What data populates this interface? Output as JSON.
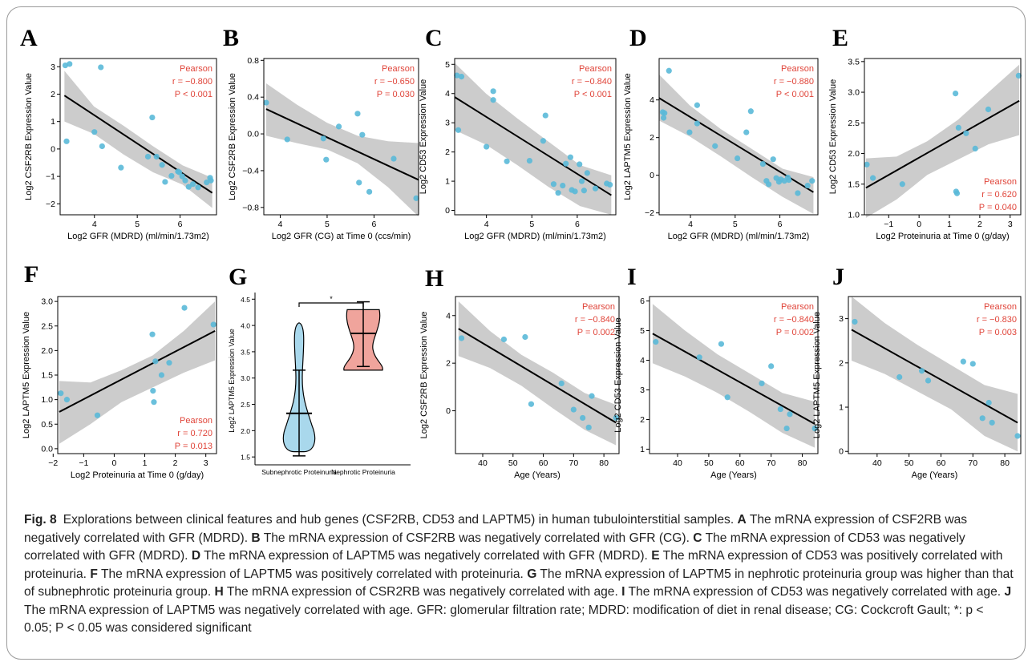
{
  "chart_data": [
    {
      "panel": "A",
      "type": "scatter",
      "xlabel": "Log2 GFR (MDRD) (ml/min/1.73m2)",
      "ylabel": "Log2 CSF2RB Expression Value",
      "xlim": [
        3.2,
        6.85
      ],
      "ylim": [
        -2.4,
        3.3
      ],
      "xticks": [
        4,
        5,
        6
      ],
      "yticks": [
        -2,
        -1,
        0,
        1,
        2,
        3
      ],
      "annotation": {
        "title": "Pearson",
        "r": "r = −0.800",
        "p": "P < 0.001",
        "position": "top-right"
      },
      "fit": {
        "x": [
          3.3,
          6.75
        ],
        "y": [
          1.95,
          -1.6
        ]
      },
      "band": {
        "upper": [
          2.85,
          1.55,
          0.85,
          0.1,
          -0.6,
          -1.05
        ],
        "lower": [
          1.0,
          0.55,
          -0.2,
          -0.85,
          -1.3,
          -2.15
        ]
      },
      "points": {
        "x": [
          3.32,
          3.42,
          3.35,
          4.15,
          4.0,
          4.18,
          4.62,
          5.25,
          5.35,
          5.45,
          5.58,
          5.65,
          5.8,
          5.95,
          5.98,
          6.05,
          6.12,
          6.2,
          6.3,
          6.42,
          6.62,
          6.7,
          6.72
        ],
        "y": [
          3.05,
          3.1,
          0.28,
          2.98,
          0.62,
          0.1,
          -0.68,
          -0.28,
          1.15,
          -0.28,
          -0.58,
          -1.2,
          -0.98,
          -0.82,
          -0.85,
          -1.0,
          -1.15,
          -1.38,
          -1.28,
          -1.4,
          -1.22,
          -1.05,
          -1.15
        ]
      }
    },
    {
      "panel": "B",
      "type": "scatter",
      "xlabel": "Log2 GFR (CG) at Time 0 (ccs/min)",
      "ylabel": "Log2 CSF2RB Expression Value",
      "xlim": [
        3.65,
        6.95
      ],
      "ylim": [
        -0.88,
        0.82
      ],
      "xticks": [
        4,
        5,
        6
      ],
      "yticks": [
        -0.8,
        -0.4,
        0.0,
        0.4,
        0.8
      ],
      "annotation": {
        "title": "Pearson",
        "r": "r = −0.650",
        "p": "P = 0.030",
        "position": "top-right"
      },
      "fit": {
        "x": [
          3.7,
          6.95
        ],
        "y": [
          0.27,
          -0.5
        ]
      },
      "band": {
        "upper": [
          0.55,
          0.32,
          0.12,
          -0.02,
          -0.08,
          -0.1
        ],
        "lower": [
          -0.02,
          -0.1,
          -0.17,
          -0.32,
          -0.58,
          -0.9
        ]
      },
      "points": {
        "x": [
          3.7,
          4.15,
          4.92,
          4.98,
          5.25,
          5.65,
          5.68,
          5.75,
          5.9,
          6.42,
          6.9
        ],
        "y": [
          0.34,
          -0.06,
          -0.05,
          -0.28,
          0.08,
          0.22,
          -0.53,
          -0.01,
          -0.63,
          -0.27,
          -0.7
        ]
      }
    },
    {
      "panel": "C",
      "type": "scatter",
      "xlabel": "Log2 GFR (MDRD) (ml/min/1.73m2)",
      "ylabel": "Log2 CD53 Expression Value",
      "xlim": [
        3.3,
        6.85
      ],
      "ylim": [
        -0.15,
        5.2
      ],
      "xticks": [
        4,
        5,
        6
      ],
      "yticks": [
        0,
        1,
        2,
        3,
        4,
        5
      ],
      "annotation": {
        "title": "Pearson",
        "r": "r = −0.840",
        "p": "P < 0.001",
        "position": "top-right"
      },
      "fit": {
        "x": [
          3.3,
          6.75
        ],
        "y": [
          3.88,
          0.52
        ]
      },
      "band": {
        "upper": [
          5.05,
          4.0,
          3.15,
          2.35,
          1.55,
          1.2
        ],
        "lower": [
          2.75,
          2.25,
          1.55,
          0.8,
          0.15,
          -0.15
        ]
      },
      "points": {
        "x": [
          3.35,
          3.45,
          3.38,
          4.15,
          4.15,
          4.0,
          4.45,
          4.95,
          5.3,
          5.25,
          5.48,
          5.58,
          5.68,
          5.75,
          5.85,
          5.88,
          5.95,
          6.05,
          6.1,
          6.15,
          6.22,
          6.4,
          6.65,
          6.72
        ],
        "y": [
          4.62,
          4.58,
          2.75,
          4.08,
          3.78,
          2.18,
          1.68,
          1.7,
          3.25,
          2.38,
          0.9,
          0.6,
          0.85,
          1.6,
          1.82,
          0.7,
          0.65,
          1.58,
          1.0,
          0.68,
          1.28,
          0.75,
          0.92,
          0.88
        ]
      }
    },
    {
      "panel": "D",
      "type": "scatter",
      "xlabel": "Log2 GFR (MDRD) (ml/min/1.73m2)",
      "ylabel": "Log2 LAPTM5 Expression Value",
      "xlim": [
        3.3,
        6.85
      ],
      "ylim": [
        -2.1,
        6.2
      ],
      "xticks": [
        4,
        5,
        6
      ],
      "yticks": [
        -2,
        0,
        2,
        4
      ],
      "annotation": {
        "title": "Pearson",
        "r": "r = −0.880",
        "p": "P < 0.001",
        "position": "top-right"
      },
      "fit": {
        "x": [
          3.3,
          6.75
        ],
        "y": [
          4.1,
          -0.9
        ]
      },
      "band": {
        "upper": [
          5.35,
          3.7,
          2.45,
          1.4,
          0.35,
          -0.1
        ],
        "lower": [
          2.9,
          2.05,
          1.0,
          -0.1,
          -1.15,
          -2.05
        ]
      },
      "points": {
        "x": [
          3.38,
          3.4,
          3.42,
          3.52,
          3.98,
          4.15,
          4.15,
          4.55,
          5.05,
          5.25,
          5.35,
          5.62,
          5.7,
          5.75,
          5.85,
          5.92,
          5.98,
          6.02,
          6.1,
          6.18,
          6.2,
          6.4,
          6.62,
          6.72
        ],
        "y": [
          3.35,
          3.05,
          3.3,
          5.55,
          2.28,
          2.75,
          3.72,
          1.55,
          0.9,
          2.28,
          3.4,
          0.6,
          -0.3,
          -0.48,
          0.85,
          -0.15,
          -0.35,
          -0.22,
          -0.3,
          -0.12,
          -0.25,
          -0.95,
          -0.55,
          -0.3
        ]
      }
    },
    {
      "panel": "E",
      "type": "scatter",
      "xlabel": "Log2 Proteinuria at Time 0 (g/day)",
      "ylabel": "Log2 CD53 Expression Value",
      "xlim": [
        -1.8,
        3.35
      ],
      "ylim": [
        1.0,
        3.55
      ],
      "xticks": [
        -1,
        0,
        1,
        2,
        3
      ],
      "yticks": [
        1.0,
        1.5,
        2.0,
        2.5,
        3.0,
        3.5
      ],
      "annotation": {
        "title": "Pearson",
        "r": "r = 0.620",
        "p": "P = 0.040",
        "position": "bottom-right"
      },
      "fit": {
        "x": [
          -1.75,
          3.3
        ],
        "y": [
          1.44,
          2.86
        ]
      },
      "band": {
        "upper": [
          1.92,
          1.95,
          2.2,
          2.55,
          3.0,
          3.45
        ],
        "lower": [
          0.95,
          1.25,
          1.65,
          1.9,
          2.15,
          2.3
        ]
      },
      "points": {
        "x": [
          -1.72,
          -1.52,
          -0.55,
          1.2,
          1.22,
          1.25,
          1.3,
          1.55,
          1.85,
          2.28,
          3.28
        ],
        "y": [
          1.82,
          1.6,
          1.5,
          2.98,
          1.38,
          1.35,
          2.42,
          2.33,
          2.08,
          2.72,
          3.27
        ]
      }
    },
    {
      "panel": "F",
      "type": "scatter",
      "xlabel": "Log2 Proteinuria at Time 0 (g/day)",
      "ylabel": "Log2 LAPTM5 Expression Value",
      "xlim": [
        -1.85,
        3.35
      ],
      "ylim": [
        -0.1,
        3.1
      ],
      "xticks": [
        -2,
        -1,
        0,
        1,
        2,
        3
      ],
      "yticks": [
        0.0,
        0.5,
        1.0,
        1.5,
        2.0,
        2.5,
        3.0
      ],
      "annotation": {
        "title": "Pearson",
        "r": "r = 0.720",
        "p": "P = 0.013",
        "position": "bottom-right"
      },
      "fit": {
        "x": [
          -1.8,
          3.3
        ],
        "y": [
          0.75,
          2.4
        ]
      },
      "band": {
        "upper": [
          1.38,
          1.35,
          1.6,
          1.9,
          2.4,
          3.0
        ],
        "lower": [
          0.1,
          0.5,
          0.95,
          1.25,
          1.55,
          1.8
        ]
      },
      "points": {
        "x": [
          -1.75,
          -1.55,
          -0.55,
          1.25,
          1.27,
          1.3,
          1.35,
          1.55,
          1.8,
          2.3,
          3.25
        ],
        "y": [
          1.13,
          1.0,
          0.68,
          2.33,
          1.18,
          0.95,
          1.78,
          1.5,
          1.75,
          2.87,
          2.53
        ]
      }
    },
    {
      "panel": "G",
      "type": "violin",
      "ylabel": "Log2 LAPTM5 Expression Value",
      "categories": [
        "Subnephrotic Proteinuria",
        "Nephrotic Proteinuria"
      ],
      "ylim": [
        1.35,
        4.55
      ],
      "yticks": [
        1.5,
        2.0,
        2.5,
        3.0,
        3.5,
        4.0,
        4.5
      ],
      "significance": "*",
      "groups": [
        {
          "name": "Subnephrotic Proteinuria",
          "color": "#a9d8ec",
          "mean": 2.33,
          "whisker": [
            1.52,
            3.15
          ],
          "min": 1.6,
          "max": 4.05
        },
        {
          "name": "Nephrotic Proteinuria",
          "color": "#f0a49c",
          "mean": 3.85,
          "whisker": [
            3.22,
            4.45
          ],
          "min": 3.15,
          "max": 4.3
        }
      ]
    },
    {
      "panel": "H",
      "type": "scatter",
      "xlabel": "Age (Years)",
      "ylabel": "Log2 CSF2RB Expression Value",
      "xlim": [
        31,
        85
      ],
      "ylim": [
        -1.8,
        4.8
      ],
      "xticks": [
        40,
        50,
        60,
        70,
        80
      ],
      "yticks": [
        0,
        2,
        4
      ],
      "annotation": {
        "title": "Pearson",
        "r": "r = −0.840",
        "p": "P = 0.002",
        "position": "top-right"
      },
      "fit": {
        "x": [
          32,
          84
        ],
        "y": [
          3.45,
          -0.5
        ]
      },
      "band": {
        "upper": [
          4.6,
          3.35,
          2.35,
          1.6,
          0.75,
          0.25
        ],
        "lower": [
          2.3,
          1.8,
          1.05,
          0.1,
          -0.8,
          -1.45
        ]
      },
      "points": {
        "x": [
          33,
          47,
          54,
          56,
          66,
          70,
          73,
          75,
          76,
          84
        ],
        "y": [
          3.05,
          3.0,
          3.1,
          0.28,
          1.15,
          0.05,
          -0.3,
          -0.7,
          0.62,
          -0.3
        ]
      }
    },
    {
      "panel": "I",
      "type": "scatter",
      "xlabel": "Age (Years)",
      "ylabel": "Log2 CD53 Expression Value",
      "xlim": [
        31,
        85
      ],
      "ylim": [
        0.85,
        6.15
      ],
      "xticks": [
        40,
        50,
        60,
        70,
        80
      ],
      "yticks": [
        1,
        2,
        3,
        4,
        5,
        6
      ],
      "annotation": {
        "title": "Pearson",
        "r": "r = −0.840",
        "p": "P = 0.002",
        "position": "top-right"
      },
      "fit": {
        "x": [
          32,
          84
        ],
        "y": [
          4.9,
          1.85
        ]
      },
      "band": {
        "upper": [
          5.9,
          5.0,
          4.2,
          3.55,
          2.9,
          2.6
        ],
        "lower": [
          3.9,
          3.45,
          2.9,
          2.25,
          1.55,
          1.05
        ]
      },
      "points": {
        "x": [
          33,
          47,
          54,
          56,
          67,
          70,
          73,
          75,
          76,
          84
        ],
        "y": [
          4.62,
          4.1,
          4.55,
          2.75,
          3.22,
          3.8,
          2.35,
          1.7,
          2.18,
          1.7
        ]
      }
    },
    {
      "panel": "J",
      "type": "scatter",
      "xlabel": "Age (Years)",
      "ylabel": "Log2 LAPTM5 Expression Value",
      "xlim": [
        31,
        85
      ],
      "ylim": [
        -0.05,
        3.5
      ],
      "xticks": [
        40,
        50,
        60,
        70,
        80
      ],
      "yticks": [
        0,
        1,
        2,
        3
      ],
      "annotation": {
        "title": "Pearson",
        "r": "r = −0.830",
        "p": "P = 0.003",
        "position": "top-right"
      },
      "fit": {
        "x": [
          32,
          84
        ],
        "y": [
          2.75,
          0.65
        ]
      },
      "band": {
        "upper": [
          3.5,
          2.9,
          2.4,
          1.95,
          1.5,
          1.3
        ],
        "lower": [
          2.05,
          1.75,
          1.35,
          0.95,
          0.35,
          0.0
        ]
      },
      "points": {
        "x": [
          33,
          47,
          54,
          56,
          67,
          70,
          73,
          75,
          76,
          84
        ],
        "y": [
          2.93,
          1.68,
          1.82,
          1.6,
          2.03,
          1.98,
          0.75,
          1.1,
          0.65,
          0.35
        ]
      }
    }
  ],
  "colors": {
    "point": "#5ab9d8",
    "band": "#cccccc",
    "line": "#000000",
    "stat": "#e0453a"
  },
  "caption": {
    "label": "Fig. 8",
    "segments": [
      {
        "t": "Explorations between clinical features and hub genes (CSF2RB, CD53 and LAPTM5) in human tubulointerstitial samples. ",
        "b": false
      },
      {
        "t": "A",
        "b": true
      },
      {
        "t": " The mRNA expression of CSF2RB was negatively correlated with GFR (MDRD). ",
        "b": false
      },
      {
        "t": "B",
        "b": true
      },
      {
        "t": " The mRNA expression of CSF2RB was negatively correlated with GFR (CG). ",
        "b": false
      },
      {
        "t": "C",
        "b": true
      },
      {
        "t": " The mRNA expression of CD53 was negatively correlated with GFR (MDRD). ",
        "b": false
      },
      {
        "t": "D",
        "b": true
      },
      {
        "t": " The mRNA expression of LAPTM5 was negatively correlated with GFR (MDRD). ",
        "b": false
      },
      {
        "t": "E",
        "b": true
      },
      {
        "t": " The mRNA expression of CD53 was positively correlated with proteinuria. ",
        "b": false
      },
      {
        "t": "F",
        "b": true
      },
      {
        "t": " The mRNA expression of LAPTM5 was positively correlated with proteinuria. ",
        "b": false
      },
      {
        "t": "G",
        "b": true
      },
      {
        "t": " The mRNA expression of LAPTM5 in nephrotic proteinuria group was higher than that of subnephrotic proteinuria group. ",
        "b": false
      },
      {
        "t": "H",
        "b": true
      },
      {
        "t": " The mRNA expression of CSR2RB was negatively correlated with age. ",
        "b": false
      },
      {
        "t": "I",
        "b": true
      },
      {
        "t": " The mRNA expression of CD53 was negatively correlated with age. ",
        "b": false
      },
      {
        "t": "J",
        "b": true
      },
      {
        "t": " The mRNA expression of LAPTM5 was negatively correlated with age. GFR: glomerular filtration rate; MDRD: modification of diet in renal disease; CG: Cockcroft Gault; *: p < 0.05; P < 0.05 was considered significant",
        "b": false
      }
    ]
  }
}
